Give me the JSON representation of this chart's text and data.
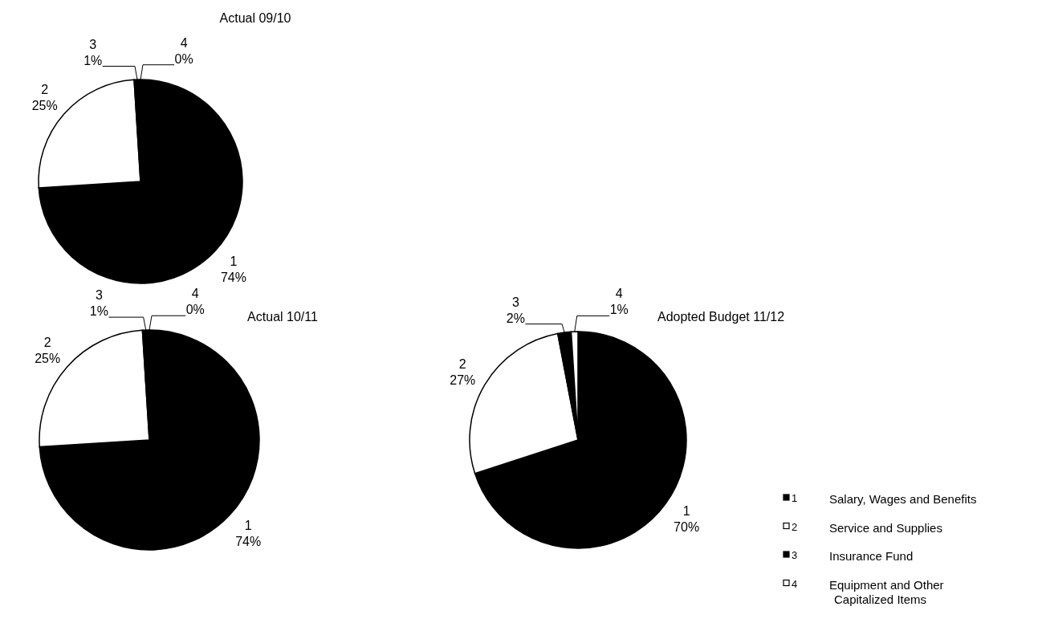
{
  "chart_data": [
    {
      "type": "pie",
      "title": "Actual 09/10",
      "categories": [
        "1",
        "2",
        "3",
        "4"
      ],
      "values": [
        74,
        25,
        1,
        0
      ],
      "value_labels": [
        "74%",
        "25%",
        "1%",
        "0%"
      ],
      "colors": [
        "#000000",
        "#ffffff",
        "#000000",
        "#ffffff"
      ],
      "legend": false
    },
    {
      "type": "pie",
      "title": "Actual 10/11",
      "categories": [
        "1",
        "2",
        "3",
        "4"
      ],
      "values": [
        74,
        25,
        1,
        0
      ],
      "value_labels": [
        "74%",
        "25%",
        "1%",
        "0%"
      ],
      "colors": [
        "#000000",
        "#ffffff",
        "#000000",
        "#ffffff"
      ],
      "legend": false
    },
    {
      "type": "pie",
      "title": "Adopted Budget 11/12",
      "categories": [
        "1",
        "2",
        "3",
        "4"
      ],
      "values": [
        70,
        27,
        2,
        1
      ],
      "value_labels": [
        "70%",
        "27%",
        "2%",
        "1%"
      ],
      "colors": [
        "#000000",
        "#ffffff",
        "#000000",
        "#ffffff"
      ],
      "legend": "bottom right",
      "annotations": [
        "Salary, Wages and Benefits",
        "Service and Supplies",
        "Insurance Fund",
        "Equipment and Other Capitalized Items"
      ]
    }
  ]
}
